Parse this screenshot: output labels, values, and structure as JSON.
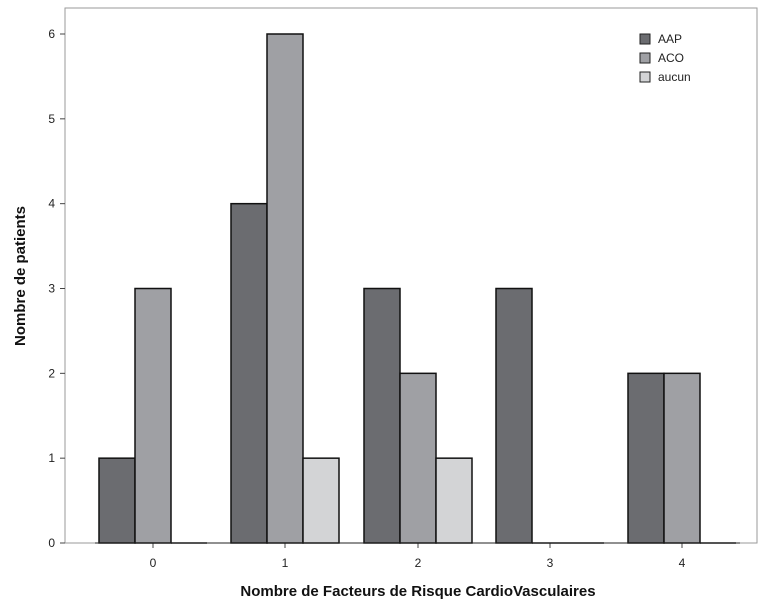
{
  "chart_data": {
    "type": "bar",
    "categories": [
      "0",
      "1",
      "2",
      "3",
      "4"
    ],
    "series": [
      {
        "name": "AAP",
        "values": [
          1,
          4,
          3,
          3,
          2
        ],
        "color": "#6b6c70"
      },
      {
        "name": "ACO",
        "values": [
          3,
          6,
          2,
          0,
          2
        ],
        "color": "#9fa0a4"
      },
      {
        "name": "aucun",
        "values": [
          0,
          1,
          1,
          0,
          0
        ],
        "color": "#d3d4d6"
      }
    ],
    "xlabel": "Nombre de Facteurs de Risque CardioVasculaires",
    "ylabel": "Nombre de patients",
    "ylim": [
      0,
      6
    ],
    "yticks": [
      0,
      1,
      2,
      3,
      4,
      5,
      6
    ],
    "grid": false,
    "legend_position": "top-right",
    "frame_color": "#9a9a9a",
    "bar_stroke": "#111111"
  }
}
